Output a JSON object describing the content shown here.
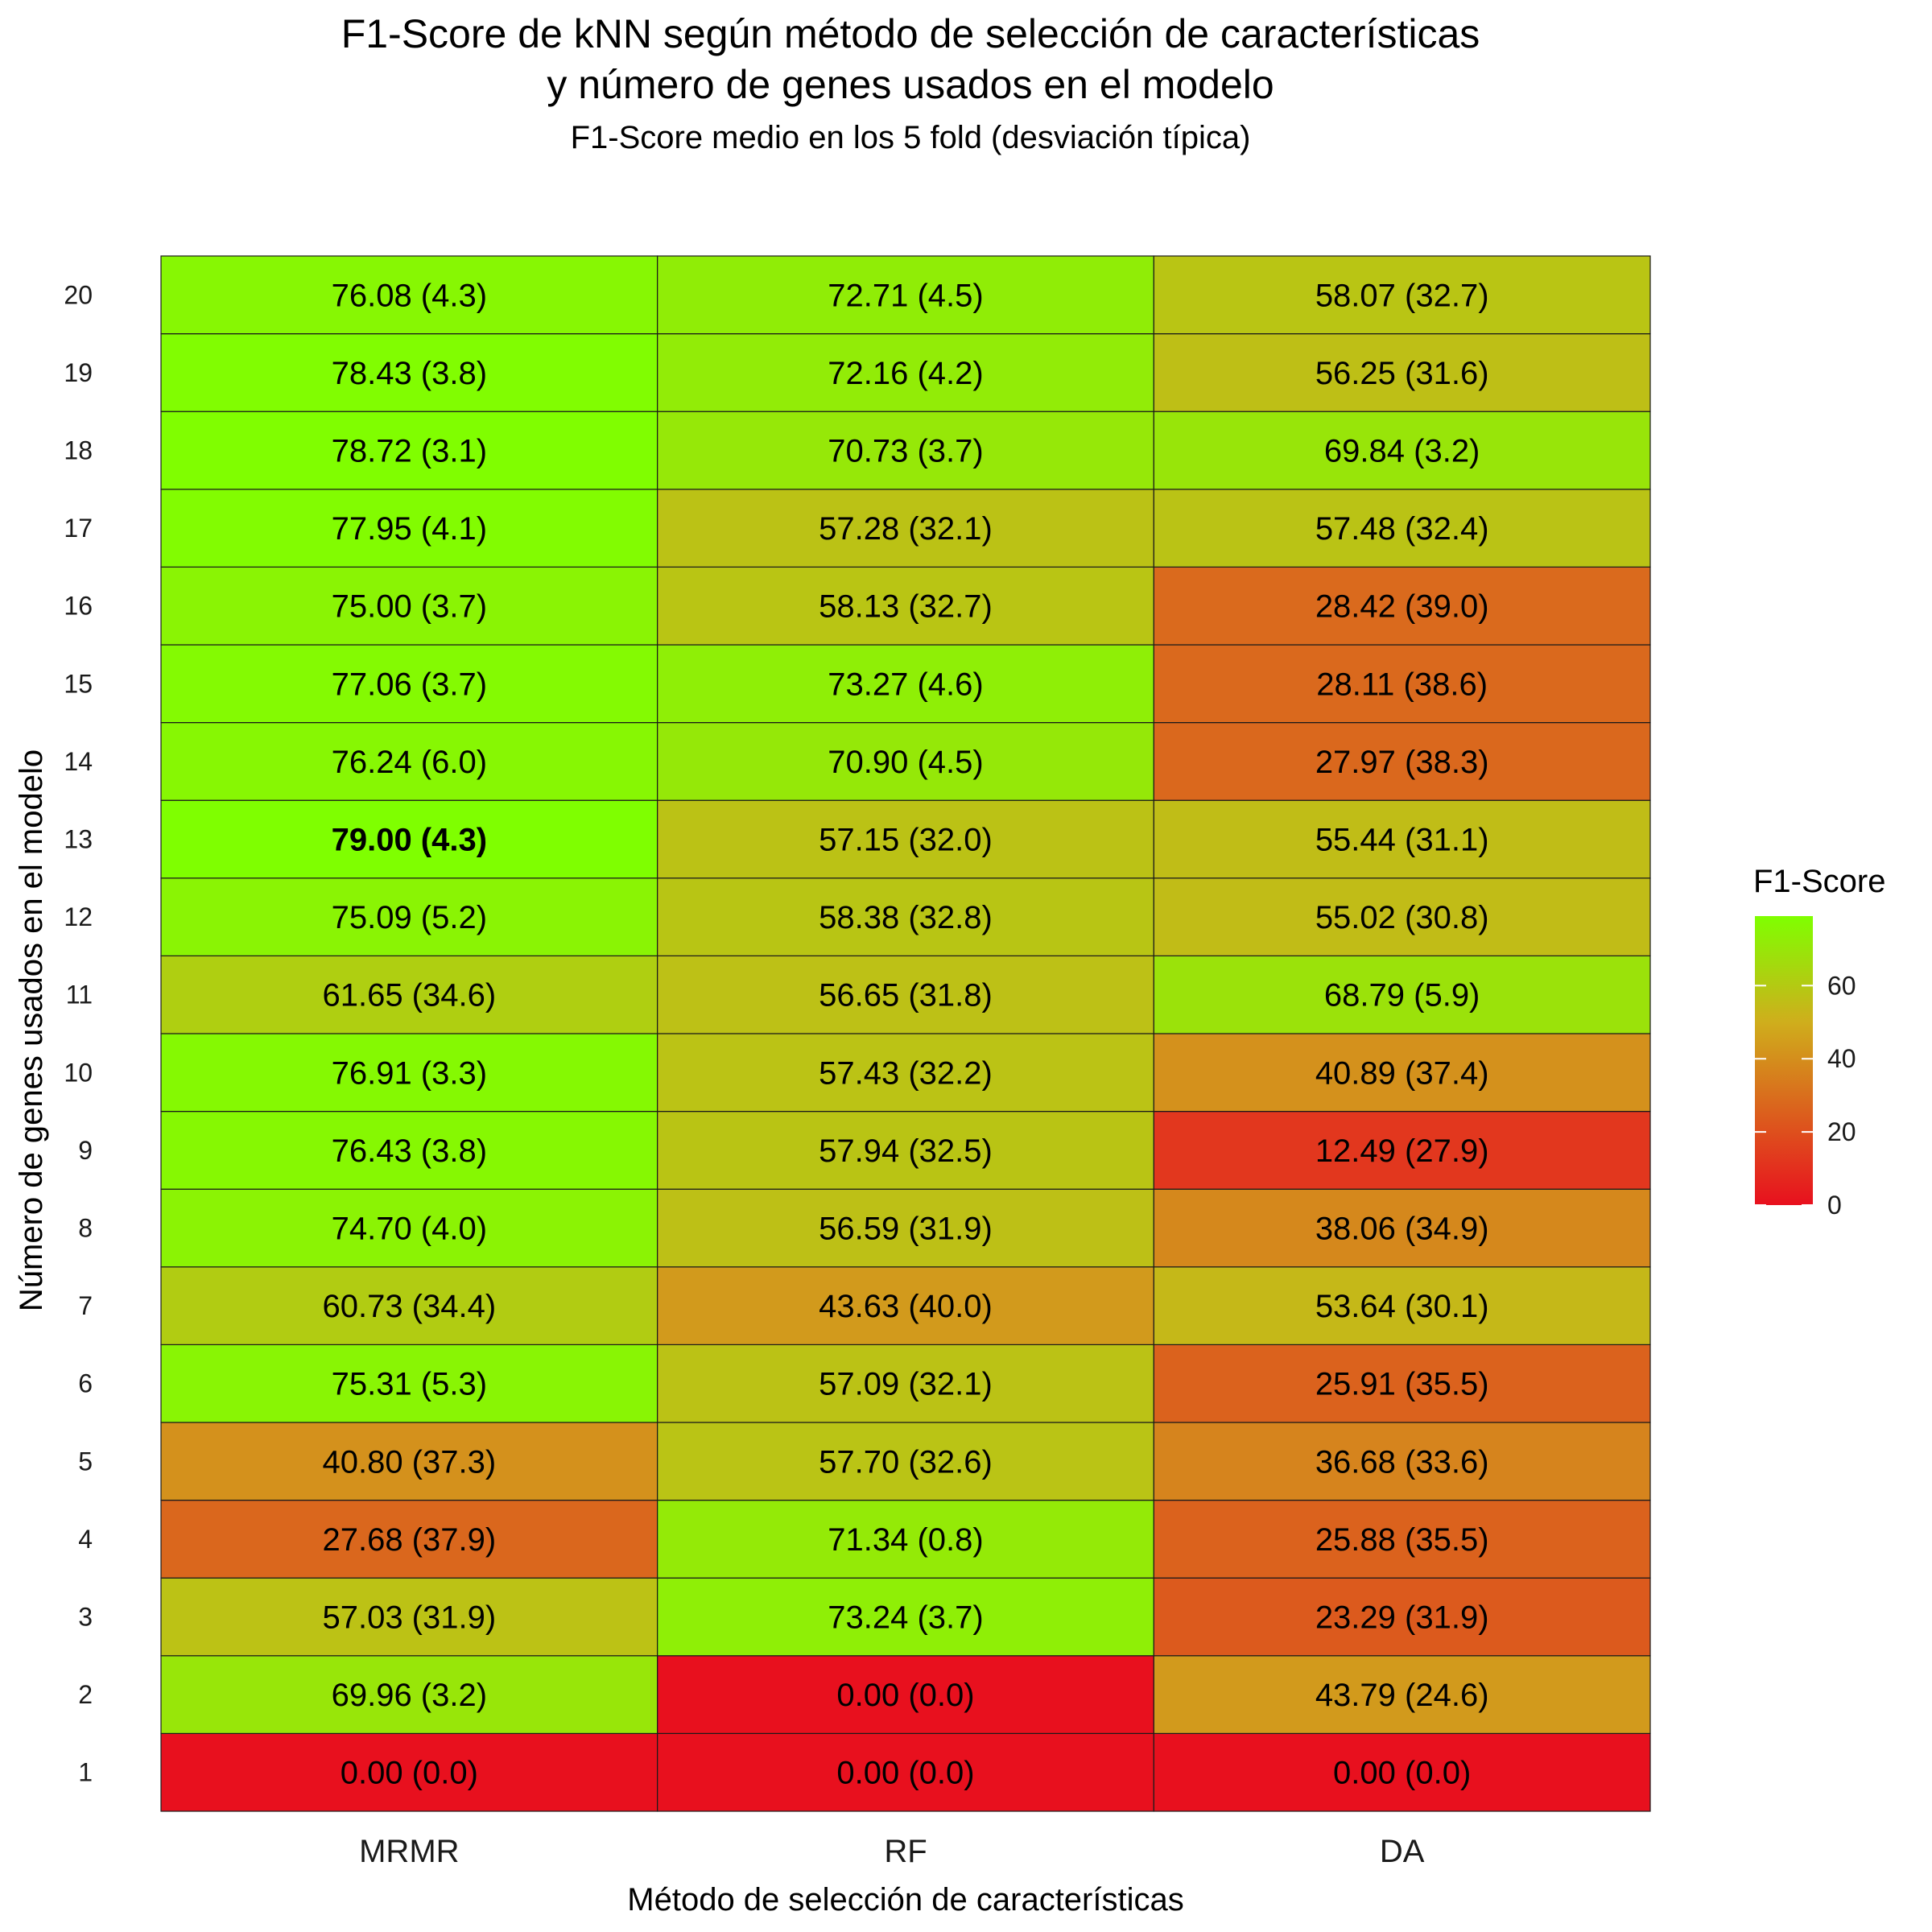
{
  "chart_data": {
    "type": "heatmap",
    "title_line1": "F1-Score de kNN según método de selección de características",
    "title_line2": "y número de genes usados en el modelo",
    "subtitle": "F1-Score medio en los 5 fold (desviación típica)",
    "xlabel": "Método de selección de características",
    "ylabel": "Número de genes usados en el modelo",
    "x_categories": [
      "MRMR",
      "RF",
      "DA"
    ],
    "y_categories": [
      "1",
      "2",
      "3",
      "4",
      "5",
      "6",
      "7",
      "8",
      "9",
      "10",
      "11",
      "12",
      "13",
      "14",
      "15",
      "16",
      "17",
      "18",
      "19",
      "20"
    ],
    "value_range": [
      0,
      79
    ],
    "color_scale": {
      "low": "#e8101e",
      "mid": "#cfae1c",
      "high": "#7fff00",
      "midpoint": 50
    },
    "legend": {
      "title": "F1-Score",
      "ticks": [
        0,
        20,
        40,
        60
      ],
      "position": "right"
    },
    "best_cell": {
      "method": "MRMR",
      "genes": 13
    },
    "series": [
      {
        "name": "MRMR",
        "values": [
          0.0,
          69.96,
          57.03,
          27.68,
          40.8,
          75.31,
          60.73,
          74.7,
          76.43,
          76.91,
          61.65,
          75.09,
          79.0,
          76.24,
          77.06,
          75.0,
          77.95,
          78.72,
          78.43,
          76.08
        ],
        "sd": [
          0.0,
          3.2,
          31.9,
          37.9,
          37.3,
          5.3,
          34.4,
          4.0,
          3.8,
          3.3,
          34.6,
          5.2,
          4.3,
          6.0,
          3.7,
          3.7,
          4.1,
          3.1,
          3.8,
          4.3
        ],
        "labels": [
          "0.00 (0.0)",
          "69.96 (3.2)",
          "57.03 (31.9)",
          "27.68 (37.9)",
          "40.80 (37.3)",
          "75.31 (5.3)",
          "60.73 (34.4)",
          "74.70 (4.0)",
          "76.43 (3.8)",
          "76.91 (3.3)",
          "61.65 (34.6)",
          "75.09 (5.2)",
          "79.00 (4.3)",
          "76.24 (6.0)",
          "77.06 (3.7)",
          "75.00 (3.7)",
          "77.95 (4.1)",
          "78.72 (3.1)",
          "78.43 (3.8)",
          "76.08 (4.3)"
        ]
      },
      {
        "name": "RF",
        "values": [
          0.0,
          0.0,
          73.24,
          71.34,
          57.7,
          57.09,
          43.63,
          56.59,
          57.94,
          57.43,
          56.65,
          58.38,
          57.15,
          70.9,
          73.27,
          58.13,
          57.28,
          70.73,
          72.16,
          72.71
        ],
        "sd": [
          0.0,
          0.0,
          3.7,
          0.8,
          32.6,
          32.1,
          40.0,
          31.9,
          32.5,
          32.2,
          31.8,
          32.8,
          32.0,
          4.5,
          4.6,
          32.7,
          32.1,
          3.7,
          4.2,
          4.5
        ],
        "labels": [
          "0.00 (0.0)",
          "0.00 (0.0)",
          "73.24 (3.7)",
          "71.34 (0.8)",
          "57.70 (32.6)",
          "57.09 (32.1)",
          "43.63 (40.0)",
          "56.59 (31.9)",
          "57.94 (32.5)",
          "57.43 (32.2)",
          "56.65 (31.8)",
          "58.38 (32.8)",
          "57.15 (32.0)",
          "70.90 (4.5)",
          "73.27 (4.6)",
          "58.13 (32.7)",
          "57.28 (32.1)",
          "70.73 (3.7)",
          "72.16 (4.2)",
          "72.71 (4.5)"
        ]
      },
      {
        "name": "DA",
        "values": [
          0.0,
          43.79,
          23.29,
          25.88,
          36.68,
          25.91,
          53.64,
          38.06,
          12.49,
          40.89,
          68.79,
          55.02,
          55.44,
          27.97,
          28.11,
          28.42,
          57.48,
          69.84,
          56.25,
          58.07
        ],
        "sd": [
          0.0,
          24.6,
          31.9,
          35.5,
          33.6,
          35.5,
          30.1,
          34.9,
          27.9,
          37.4,
          5.9,
          30.8,
          31.1,
          38.3,
          38.6,
          39.0,
          32.4,
          3.2,
          31.6,
          32.7
        ],
        "labels": [
          "0.00 (0.0)",
          "43.79 (24.6)",
          "23.29 (31.9)",
          "25.88 (35.5)",
          "36.68 (33.6)",
          "25.91 (35.5)",
          "53.64 (30.1)",
          "38.06 (34.9)",
          "12.49 (27.9)",
          "40.89 (37.4)",
          "68.79 (5.9)",
          "55.02 (30.8)",
          "55.44 (31.1)",
          "27.97 (38.3)",
          "28.11 (38.6)",
          "28.42 (39.0)",
          "57.48 (32.4)",
          "69.84 (3.2)",
          "56.25 (31.6)",
          "58.07 (32.7)"
        ]
      }
    ]
  }
}
